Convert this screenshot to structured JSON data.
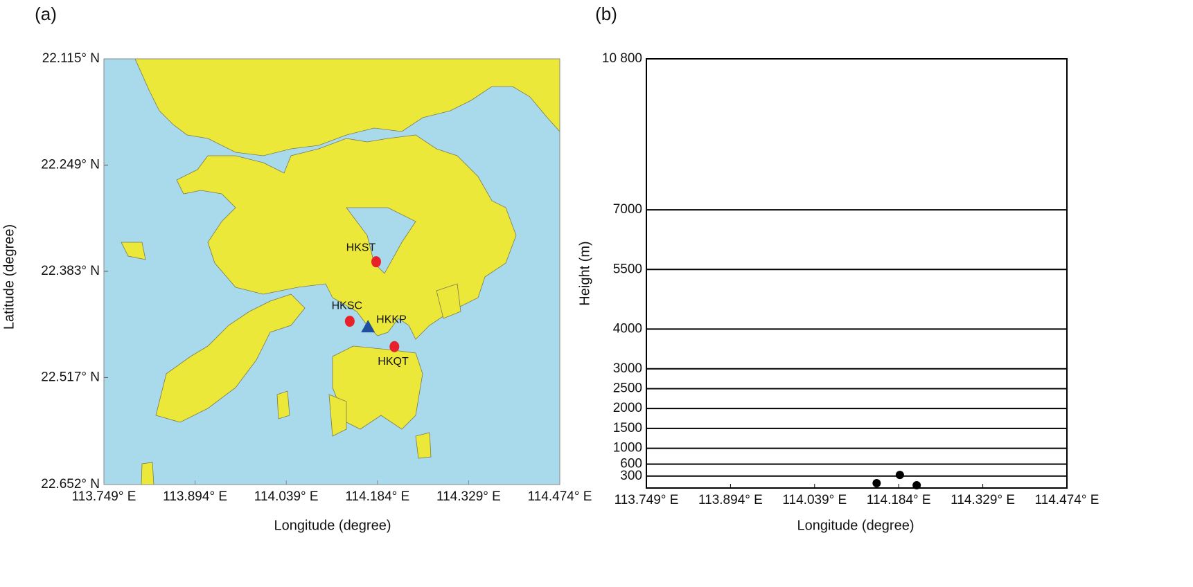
{
  "chart_data": [
    {
      "type": "map",
      "panel_label": "(a)",
      "xlabel": "Longitude (degree)",
      "ylabel": "Latitude (degree)",
      "xlim": [
        113.749,
        114.474
      ],
      "ylim": [
        22.115,
        22.652
      ],
      "y_inverted": true,
      "xticks": [
        {
          "value": 113.749,
          "label": "113.749° E"
        },
        {
          "value": 113.894,
          "label": "113.894° E"
        },
        {
          "value": 114.039,
          "label": "114.039° E"
        },
        {
          "value": 114.184,
          "label": "114.184° E"
        },
        {
          "value": 114.329,
          "label": "114.329° E"
        },
        {
          "value": 114.474,
          "label": "114.474° E"
        }
      ],
      "yticks": [
        {
          "value": 22.115,
          "label": "22.115° N"
        },
        {
          "value": 22.249,
          "label": "22.249° N"
        },
        {
          "value": 22.383,
          "label": "22.383° N"
        },
        {
          "value": 22.517,
          "label": "22.517° N"
        },
        {
          "value": 22.652,
          "label": "22.652° N"
        }
      ],
      "points": {
        "labels": [
          "HKST",
          "HKSC",
          "HKKP",
          "HKQT"
        ],
        "x": [
          114.182,
          114.14,
          114.169,
          114.211
        ],
        "y": [
          22.371,
          22.446,
          22.453,
          22.478
        ],
        "markers": [
          "circle",
          "circle",
          "triangle",
          "circle"
        ],
        "colors": [
          "#e8202a",
          "#e8202a",
          "#1f4e9c",
          "#e8202a"
        ]
      }
    },
    {
      "type": "scatter",
      "panel_label": "(b)",
      "xlabel": "Longitude (degree)",
      "ylabel": "Height (m)",
      "xlim": [
        113.749,
        114.474
      ],
      "ylim": [
        0,
        10800
      ],
      "grid": true,
      "color": "#000000",
      "xticks": [
        {
          "value": 113.749,
          "label": "113.749° E"
        },
        {
          "value": 113.894,
          "label": "113.894° E"
        },
        {
          "value": 114.039,
          "label": "114.039° E"
        },
        {
          "value": 114.184,
          "label": "114.184° E"
        },
        {
          "value": 114.329,
          "label": "114.329° E"
        },
        {
          "value": 114.474,
          "label": "114.474° E"
        }
      ],
      "yticks": [
        300,
        600,
        1000,
        1500,
        2000,
        2500,
        3000,
        4000,
        5500,
        7000,
        {
          "value": 10800,
          "label": "10 800"
        }
      ],
      "x": [
        114.146,
        114.186,
        114.215
      ],
      "values": [
        121,
        329,
        69
      ]
    }
  ]
}
